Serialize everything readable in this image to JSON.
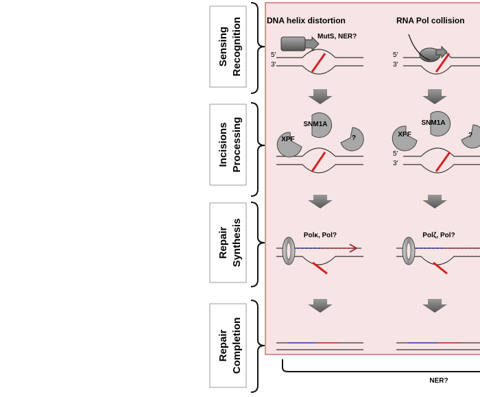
{
  "stages": [
    {
      "line1": "Sensing",
      "line2": "Recognition"
    },
    {
      "line1": "Incisions",
      "line2": "Processing"
    },
    {
      "line1": "Repair",
      "line2": "Synthesis"
    },
    {
      "line1": "Repair",
      "line2": "Completion"
    }
  ],
  "columns": {
    "left_title": "DNA helix distortion",
    "right_title": "RNA Pol collision"
  },
  "labels": {
    "sensor": "MutS, NER?",
    "five_prime": "5′",
    "three_prime": "3′",
    "snm1a": "SNM1A",
    "xpf": "XPF",
    "unknown": "?",
    "pol_left": "Polκ, Pol?",
    "pol_right": "Polζ, Pol?",
    "bottom": "NER?"
  },
  "colors": {
    "panel_fill": "#f7e4e4",
    "panel_border": "#c0504d",
    "lesion": "#d42020",
    "new_strand_blue": "#2030a0",
    "new_strand_red": "#a02030",
    "protein_gray": "#a8a8a8",
    "arrow_gray": "#6a6a6a"
  }
}
